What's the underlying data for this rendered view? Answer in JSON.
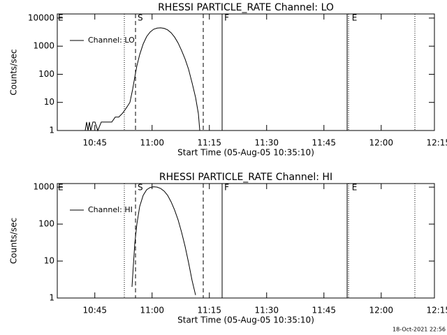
{
  "chart_data": [
    {
      "type": "line",
      "title": "RHESSI PARTICLE_RATE Channel: LO",
      "xlabel": "Start Time (05-Aug-05 10:35:10)",
      "ylabel": "Counts/sec",
      "ylog": true,
      "xlim": [
        635.17,
        733.94
      ],
      "ylim": [
        1,
        14000
      ],
      "xticks": [
        {
          "value": 645,
          "label": "10:45"
        },
        {
          "value": 660,
          "label": "11:00"
        },
        {
          "value": 675,
          "label": "11:15"
        },
        {
          "value": 690,
          "label": "11:30"
        },
        {
          "value": 705,
          "label": "11:45"
        },
        {
          "value": 720,
          "label": "12:00"
        },
        {
          "value": 735,
          "label": "12:15"
        }
      ],
      "yticks": [
        1,
        10,
        100,
        1000,
        10000
      ],
      "legend": "upper left",
      "series": [
        {
          "name": "Channel: LO",
          "color": "#000000",
          "x": [
            642.49,
            642.85,
            643.22,
            643.59,
            643.95,
            644.5,
            645.05,
            645.78,
            646.69,
            647.61,
            648.52,
            649.44,
            650.35,
            651.27,
            652.18,
            652.73,
            653.46,
            654.19,
            654.93,
            655.47,
            656.02,
            656.75,
            657.67,
            658.58,
            659.5,
            660.41,
            661.33,
            662.24,
            663.16,
            664.07,
            664.98,
            665.9,
            666.81,
            667.73,
            668.64,
            669.56,
            670.47,
            671.39,
            672.12,
            672.49
          ],
          "values": [
            1,
            2,
            1,
            2,
            1,
            2,
            2,
            1,
            2,
            2,
            2,
            2,
            3,
            3,
            4,
            5,
            7,
            10,
            30,
            80,
            200,
            500,
            1200,
            2200,
            3200,
            4000,
            4400,
            4500,
            4300,
            3800,
            3000,
            2100,
            1300,
            700,
            350,
            150,
            50,
            15,
            4,
            1
          ]
        }
      ],
      "vlines": [
        {
          "x": 652.73,
          "style": "dotted"
        },
        {
          "x": 655.66,
          "style": "dashed"
        },
        {
          "x": 673.4,
          "style": "dashed"
        },
        {
          "x": 678.34,
          "style": "solid"
        },
        {
          "x": 711.08,
          "style": "solid"
        },
        {
          "x": 711.45,
          "style": "dotted"
        },
        {
          "x": 728.82,
          "style": "dotted"
        }
      ],
      "markers": [
        {
          "x": 635.35,
          "label": "E"
        },
        {
          "x": 656.2,
          "label": "S"
        },
        {
          "x": 678.9,
          "label": "F"
        },
        {
          "x": 712.3,
          "label": "E"
        }
      ]
    },
    {
      "type": "line",
      "title": "RHESSI PARTICLE_RATE Channel: HI",
      "xlabel": "Start Time (05-Aug-05 10:35:10)",
      "ylabel": "Counts/sec",
      "ylog": true,
      "xlim": [
        635.17,
        733.94
      ],
      "ylim": [
        1,
        1250
      ],
      "xticks": [
        {
          "value": 645,
          "label": "10:45"
        },
        {
          "value": 660,
          "label": "11:00"
        },
        {
          "value": 675,
          "label": "11:15"
        },
        {
          "value": 690,
          "label": "11:30"
        },
        {
          "value": 705,
          "label": "11:45"
        },
        {
          "value": 720,
          "label": "12:00"
        },
        {
          "value": 735,
          "label": "12:15"
        }
      ],
      "yticks": [
        1,
        10,
        100,
        1000
      ],
      "legend": "upper left",
      "series": [
        {
          "name": "Channel: HI",
          "color": "#000000",
          "x": [
            654.74,
            655.11,
            655.47,
            656.02,
            656.75,
            657.67,
            658.58,
            659.5,
            660.41,
            661.33,
            662.24,
            663.16,
            664.07,
            664.98,
            665.9,
            666.81,
            667.73,
            668.64,
            669.56,
            670.47,
            671.39
          ],
          "values": [
            2,
            8,
            30,
            100,
            300,
            600,
            850,
            980,
            1020,
            1000,
            920,
            780,
            600,
            400,
            240,
            130,
            60,
            25,
            9,
            3,
            1.2
          ]
        }
      ],
      "vlines": [
        {
          "x": 652.73,
          "style": "dotted"
        },
        {
          "x": 655.66,
          "style": "dashed"
        },
        {
          "x": 673.4,
          "style": "dashed"
        },
        {
          "x": 678.34,
          "style": "solid"
        },
        {
          "x": 711.08,
          "style": "solid"
        },
        {
          "x": 711.45,
          "style": "dotted"
        },
        {
          "x": 728.82,
          "style": "dotted"
        }
      ],
      "markers": [
        {
          "x": 635.35,
          "label": "E"
        },
        {
          "x": 656.2,
          "label": "S"
        },
        {
          "x": 678.9,
          "label": "F"
        },
        {
          "x": 712.3,
          "label": "E"
        }
      ]
    }
  ],
  "timestamp": "18-Oct-2021 22:56"
}
